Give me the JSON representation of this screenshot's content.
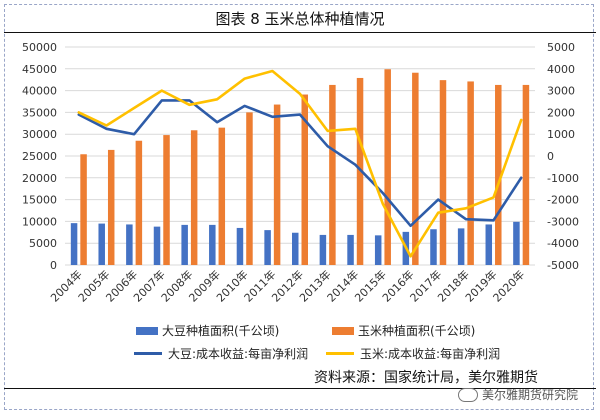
{
  "title": "图表 8  玉米总体种植情况",
  "source": "资料来源：国家统计局，美尔雅期货",
  "watermark": "美尔雅期货研究院",
  "colors": {
    "soy_area": "#4472c4",
    "corn_area": "#ed7d31",
    "soy_profit": "#2e5ca8",
    "corn_profit": "#ffc000",
    "grid": "#d9d9d9",
    "axis_text": "#333333"
  },
  "chart_data": {
    "type": "bar",
    "title": "图表 8  玉米总体种植情况",
    "categories": [
      "2004年",
      "2005年",
      "2006年",
      "2007年",
      "2008年",
      "2009年",
      "2010年",
      "2011年",
      "2012年",
      "2013年",
      "2014年",
      "2015年",
      "2016年",
      "2017年",
      "2018年",
      "2019年",
      "2020年"
    ],
    "left_axis": {
      "ylim": [
        0,
        50000
      ],
      "ticks": [
        "0",
        "5000",
        "10000",
        "15000",
        "20000",
        "25000",
        "30000",
        "35000",
        "40000",
        "45000",
        "50000"
      ]
    },
    "right_axis": {
      "ylim": [
        -5000,
        5000
      ],
      "ticks": [
        "-5000",
        "-4000",
        "-3000",
        "-2000",
        "-1000",
        "0",
        "1000",
        "2000",
        "3000",
        "4000",
        "5000"
      ]
    },
    "series": [
      {
        "name": "大豆种植面积(千公顷)",
        "type": "bar",
        "axis": "left",
        "values": [
          9600,
          9500,
          9300,
          8800,
          9200,
          9200,
          8500,
          8000,
          7400,
          6900,
          6900,
          6800,
          7600,
          8200,
          8400,
          9300,
          9900
        ]
      },
      {
        "name": "玉米种植面积(千公顷)",
        "type": "bar",
        "axis": "left",
        "values": [
          25400,
          26400,
          28500,
          29800,
          30900,
          31500,
          35000,
          36800,
          39100,
          41300,
          42900,
          44900,
          44100,
          42400,
          42100,
          41300,
          41300
        ]
      },
      {
        "name": "大豆:成本收益:每亩净利润",
        "type": "line",
        "axis": "right",
        "values": [
          1900,
          1250,
          1000,
          2550,
          2550,
          1550,
          2300,
          1800,
          1900,
          450,
          -400,
          -1700,
          -3200,
          -2000,
          -2900,
          -2950,
          -1000
        ]
      },
      {
        "name": "玉米:成本收益:每亩净利润",
        "type": "line",
        "axis": "right",
        "values": [
          2000,
          1400,
          2200,
          3000,
          2350,
          2600,
          3550,
          3900,
          2850,
          1150,
          1250,
          -2200,
          -4600,
          -2600,
          -2400,
          -1900,
          1650
        ]
      }
    ]
  }
}
